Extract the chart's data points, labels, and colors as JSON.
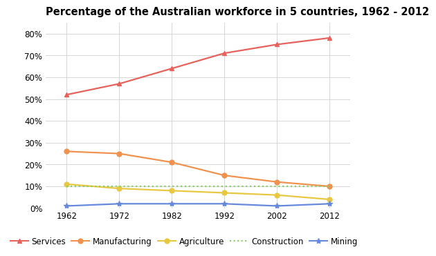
{
  "title": "Percentage of the Australian workforce in 5 countries, 1962 - 2012",
  "years": [
    1962,
    1972,
    1982,
    1992,
    2002,
    2012
  ],
  "series": [
    {
      "name": "Services",
      "values": [
        52,
        57,
        64,
        71,
        75,
        78
      ],
      "color": "#e8615a",
      "linestyle": "-",
      "marker": "^",
      "markersize": 5
    },
    {
      "name": "Manufacturing",
      "values": [
        26,
        25,
        21,
        15,
        12,
        10
      ],
      "color": "#f0924e",
      "linestyle": "-",
      "marker": "o",
      "markersize": 5
    },
    {
      "name": "Agriculture",
      "values": [
        11,
        9,
        8,
        7,
        6,
        4
      ],
      "color": "#e8c840",
      "linestyle": "-",
      "marker": "o",
      "markersize": 5
    },
    {
      "name": "Construction",
      "values": [
        10,
        10,
        10,
        10,
        10,
        10
      ],
      "color": "#88cc66",
      "linestyle": ":",
      "marker": null,
      "markersize": 0
    },
    {
      "name": "Mining",
      "values": [
        1,
        2,
        2,
        2,
        1,
        2
      ],
      "color": "#6688dd",
      "linestyle": "-",
      "marker": "*",
      "markersize": 6
    }
  ],
  "ylim": [
    0,
    85
  ],
  "yticks": [
    0,
    10,
    20,
    30,
    40,
    50,
    60,
    70,
    80
  ],
  "ytick_labels": [
    "0%",
    "10%",
    "20%",
    "30%",
    "40%",
    "50%",
    "60%",
    "70%",
    "80%"
  ],
  "background_color": "#ffffff",
  "grid_color": "#d0d0d0",
  "title_fontsize": 10.5,
  "legend_fontsize": 8.5,
  "tick_fontsize": 8.5
}
